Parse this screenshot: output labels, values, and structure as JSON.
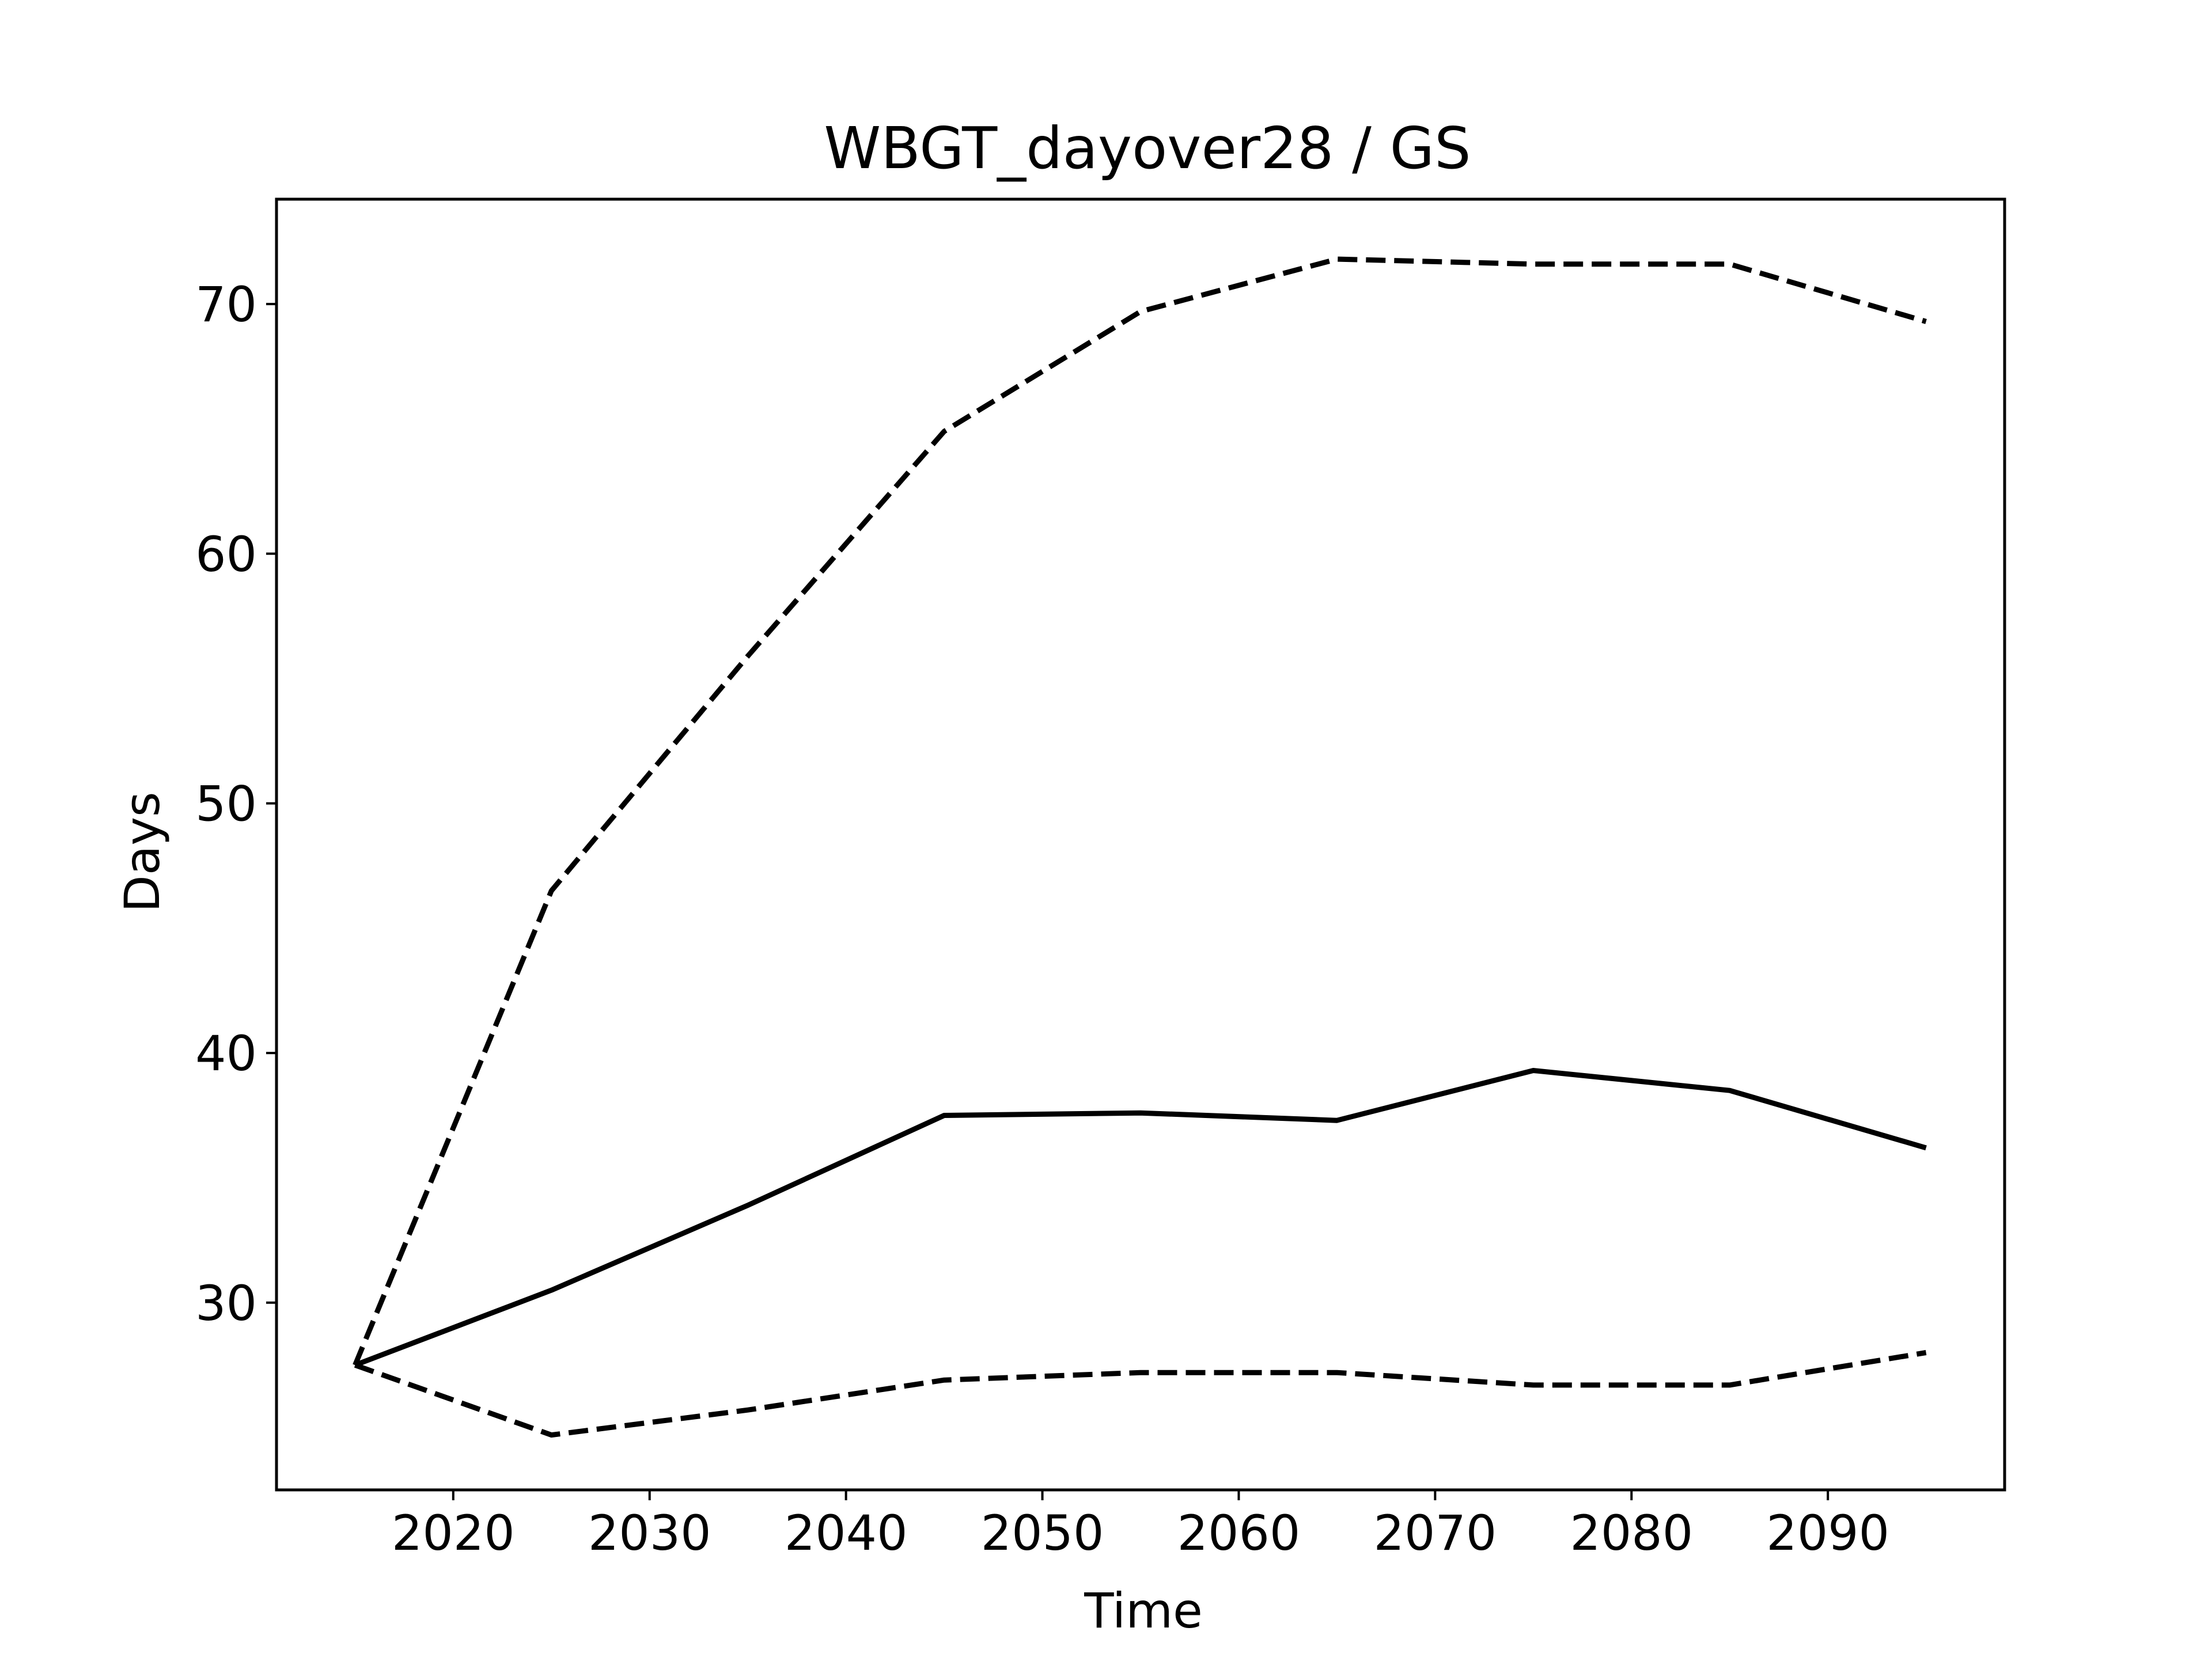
{
  "chart_data": {
    "type": "line",
    "title": "WBGT_dayover28 / GS",
    "xlabel": "Time",
    "ylabel": "Days",
    "xlim": [
      2011,
      2099
    ],
    "ylim": [
      22.5,
      74.2
    ],
    "xticks": [
      2020,
      2030,
      2040,
      2050,
      2060,
      2070,
      2080,
      2090
    ],
    "yticks": [
      30,
      40,
      50,
      60,
      70
    ],
    "grid": false,
    "x": [
      2015,
      2025,
      2035,
      2045,
      2055,
      2065,
      2075,
      2085,
      2095
    ],
    "series": [
      {
        "style": "solid",
        "color": "#000000",
        "values": [
          27.5,
          30.5,
          33.9,
          37.5,
          37.6,
          37.3,
          39.3,
          38.5,
          36.2
        ]
      },
      {
        "style": "dashed",
        "color": "#000000",
        "values": [
          27.5,
          46.5,
          55.9,
          64.9,
          69.7,
          71.8,
          71.6,
          71.6,
          69.3
        ]
      },
      {
        "style": "dashed",
        "color": "#000000",
        "values": [
          27.5,
          24.7,
          25.7,
          26.9,
          27.2,
          27.2,
          26.7,
          26.7,
          28.0
        ]
      }
    ]
  }
}
